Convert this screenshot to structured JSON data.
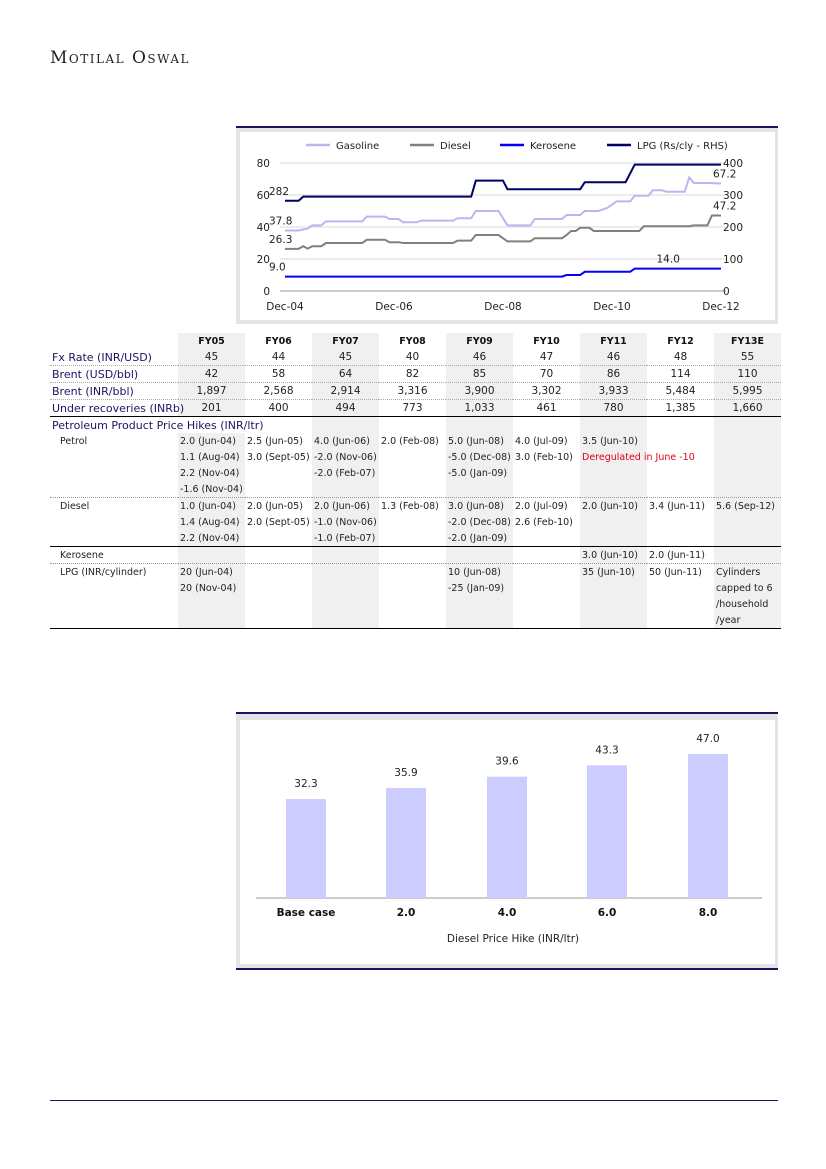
{
  "brand": "Motilal Oswal",
  "colors": {
    "gasoline": "#b8b8f0",
    "diesel": "#808080",
    "kerosene": "#0000ff",
    "lpg": "#000066",
    "bar": "#ccccff",
    "navy": "#1b1464"
  },
  "chart_data": [
    {
      "type": "line",
      "legend": [
        "Gasoline",
        "Diesel",
        "Kerosene",
        "LPG (Rs/cly - RHS)"
      ],
      "x_ticks": [
        "Dec-04",
        "Dec-06",
        "Dec-08",
        "Dec-10",
        "Dec-12"
      ],
      "x_unit": "months since Dec-04",
      "xlim": [
        0,
        96
      ],
      "y_ticks": [
        "0",
        "20",
        "40",
        "60",
        "80"
      ],
      "ylim": [
        0,
        80
      ],
      "y2_ticks": [
        "0",
        "100",
        "200",
        "300",
        "400"
      ],
      "y2lim": [
        0,
        400
      ],
      "series": [
        {
          "name": "Gasoline",
          "axis": "left",
          "points": [
            [
              0,
              37.8
            ],
            [
              3,
              37.8
            ],
            [
              5,
              39
            ],
            [
              6,
              41
            ],
            [
              8,
              41
            ],
            [
              9,
              43.5
            ],
            [
              17,
              43.5
            ],
            [
              18,
              46.5
            ],
            [
              22,
              46.5
            ],
            [
              23,
              45
            ],
            [
              25,
              45
            ],
            [
              26,
              43
            ],
            [
              29,
              43
            ],
            [
              30,
              44
            ],
            [
              37,
              44
            ],
            [
              38,
              45.5
            ],
            [
              41,
              45.5
            ],
            [
              42,
              50
            ],
            [
              47,
              50
            ],
            [
              49,
              41
            ],
            [
              54,
              41
            ],
            [
              55,
              45
            ],
            [
              61,
              45
            ],
            [
              62,
              47.5
            ],
            [
              65,
              47.5
            ],
            [
              66,
              50
            ],
            [
              69,
              50
            ],
            [
              71,
              52
            ],
            [
              73,
              56
            ],
            [
              76,
              56
            ],
            [
              77,
              59.5
            ],
            [
              80,
              59.5
            ],
            [
              81,
              63
            ],
            [
              83,
              63
            ],
            [
              84,
              62
            ],
            [
              88,
              62
            ],
            [
              89,
              71
            ],
            [
              90,
              67.5
            ],
            [
              93,
              67.5
            ],
            [
              96,
              67.2
            ]
          ],
          "labels": [
            {
              "at": 0,
              "text": "37.8"
            },
            {
              "at": 96,
              "text": "67.2"
            }
          ]
        },
        {
          "name": "Diesel",
          "axis": "left",
          "points": [
            [
              0,
              26.3
            ],
            [
              3,
              26.3
            ],
            [
              4,
              28
            ],
            [
              5,
              26.5
            ],
            [
              6,
              28
            ],
            [
              8,
              28
            ],
            [
              9,
              30
            ],
            [
              17,
              30
            ],
            [
              18,
              32
            ],
            [
              22,
              32
            ],
            [
              23,
              30.5
            ],
            [
              25,
              30.5
            ],
            [
              26,
              30
            ],
            [
              37,
              30
            ],
            [
              38,
              31.5
            ],
            [
              41,
              31.5
            ],
            [
              42,
              35
            ],
            [
              47,
              35
            ],
            [
              49,
              31
            ],
            [
              54,
              31
            ],
            [
              55,
              33
            ],
            [
              61,
              33
            ],
            [
              62,
              35
            ],
            [
              63,
              37.5
            ],
            [
              64,
              37.5
            ],
            [
              65,
              39.5
            ],
            [
              67,
              39.5
            ],
            [
              68,
              37.5
            ],
            [
              78,
              37.5
            ],
            [
              79,
              40.5
            ],
            [
              89,
              40.5
            ],
            [
              90,
              41
            ],
            [
              93,
              41
            ],
            [
              94,
              47.2
            ],
            [
              96,
              47.2
            ]
          ],
          "labels": [
            {
              "at": 0,
              "text": "26.3"
            },
            {
              "at": 96,
              "text": "47.2"
            }
          ]
        },
        {
          "name": "Kerosene",
          "axis": "left",
          "points": [
            [
              0,
              9
            ],
            [
              61,
              9
            ],
            [
              62,
              10
            ],
            [
              65,
              10
            ],
            [
              66,
              12
            ],
            [
              76,
              12
            ],
            [
              77,
              14
            ],
            [
              96,
              14
            ]
          ],
          "labels": [
            {
              "at": 0,
              "text": "9.0"
            },
            {
              "at": 84,
              "text": "14.0"
            }
          ]
        },
        {
          "name": "LPG (Rs/cly - RHS)",
          "axis": "right",
          "points": [
            [
              0,
              282
            ],
            [
              3,
              282
            ],
            [
              4,
              295
            ],
            [
              41,
              295
            ],
            [
              42,
              345
            ],
            [
              48,
              345
            ],
            [
              49,
              318
            ],
            [
              65,
              318
            ],
            [
              66,
              340
            ],
            [
              75,
              340
            ],
            [
              77,
              395
            ],
            [
              96,
              395
            ]
          ],
          "labels": [
            {
              "at": 0,
              "text": "282"
            }
          ]
        }
      ]
    },
    {
      "type": "bar",
      "categories": [
        "Base case",
        "2.0",
        "4.0",
        "6.0",
        "8.0"
      ],
      "values": [
        32.3,
        35.9,
        39.6,
        43.3,
        47.0
      ],
      "labels": [
        "32.3",
        "35.9",
        "39.6",
        "43.3",
        "47.0"
      ],
      "xlabel": "Diesel Price Hike (INR/ltr)",
      "ylim": [
        0,
        50
      ]
    }
  ],
  "table": {
    "columns": [
      "FY05",
      "FY06",
      "FY07",
      "FY08",
      "FY09",
      "FY10",
      "FY11",
      "FY12",
      "FY13E"
    ],
    "metrics": [
      {
        "label": "Fx Rate (INR/USD)",
        "values": [
          "45",
          "44",
          "45",
          "40",
          "46",
          "47",
          "46",
          "48",
          "55"
        ]
      },
      {
        "label": "Brent (USD/bbl)",
        "values": [
          "42",
          "58",
          "64",
          "82",
          "85",
          "70",
          "86",
          "114",
          "110"
        ]
      },
      {
        "label": "Brent (INR/bbl)",
        "values": [
          "1,897",
          "2,568",
          "2,914",
          "3,316",
          "3,900",
          "3,302",
          "3,933",
          "5,484",
          "5,995"
        ]
      },
      {
        "label": "Under recoveries (INRb)",
        "values": [
          "201",
          "400",
          "494",
          "773",
          "1,033",
          "461",
          "780",
          "1,385",
          "1,660"
        ]
      }
    ],
    "section_title": "Petroleum Product Price Hikes (INR/ltr)",
    "groups": [
      {
        "label": "Petrol",
        "rows": [
          [
            "2.0 (Jun-04)",
            "2.5 (Jun-05)",
            "4.0 (Jun-06)",
            "2.0 (Feb-08)",
            "5.0 (Jun-08)",
            "4.0 (Jul-09)",
            "3.5 (Jun-10)",
            "",
            ""
          ],
          [
            "1.1 (Aug-04)",
            "3.0 (Sept-05)",
            "-2.0 (Nov-06)",
            "",
            "-5.0 (Dec-08)",
            "3.0 (Feb-10)",
            "Deregulated in June -10",
            "",
            ""
          ],
          [
            "2.2 (Nov-04)",
            "",
            "-2.0 (Feb-07)",
            "",
            "-5.0 (Jan-09)",
            "",
            "",
            "",
            ""
          ],
          [
            "-1.6 (Nov-04)",
            "",
            "",
            "",
            "",
            "",
            "",
            "",
            ""
          ]
        ]
      },
      {
        "label": "Diesel",
        "rows": [
          [
            "1.0 (Jun-04)",
            "2.0 (Jun-05)",
            "2.0 (Jun-06)",
            "1.3 (Feb-08)",
            "3.0 (Jun-08)",
            "2.0 (Jul-09)",
            "2.0 (Jun-10)",
            "3.4 (Jun-11)",
            "5.6 (Sep-12)"
          ],
          [
            "1.4 (Aug-04)",
            "2.0 (Sept-05)",
            "-1.0 (Nov-06)",
            "",
            "-2.0 (Dec-08)",
            "2.6 (Feb-10)",
            "",
            "",
            ""
          ],
          [
            "2.2 (Nov-04)",
            "",
            "-1.0 (Feb-07)",
            "",
            "-2.0 (Jan-09)",
            "",
            "",
            "",
            ""
          ]
        ]
      },
      {
        "label": "Kerosene",
        "rows": [
          [
            "",
            "",
            "",
            "",
            "",
            "",
            "3.0 (Jun-10)",
            "2.0 (Jun-11)",
            ""
          ]
        ]
      },
      {
        "label": "LPG (INR/cylinder)",
        "rows": [
          [
            "20 (Jun-04)",
            "",
            "",
            "",
            "10 (Jun-08)",
            "",
            "35 (Jun-10)",
            "50 (Jun-11)",
            "Cylinders"
          ],
          [
            "20 (Nov-04)",
            "",
            "",
            "",
            "-25 (Jan-09)",
            "",
            "",
            "",
            "capped to 6"
          ],
          [
            "",
            "",
            "",
            "",
            "",
            "",
            "",
            "",
            "/household"
          ],
          [
            "",
            "",
            "",
            "",
            "",
            "",
            "",
            "",
            "/year"
          ]
        ]
      }
    ]
  }
}
